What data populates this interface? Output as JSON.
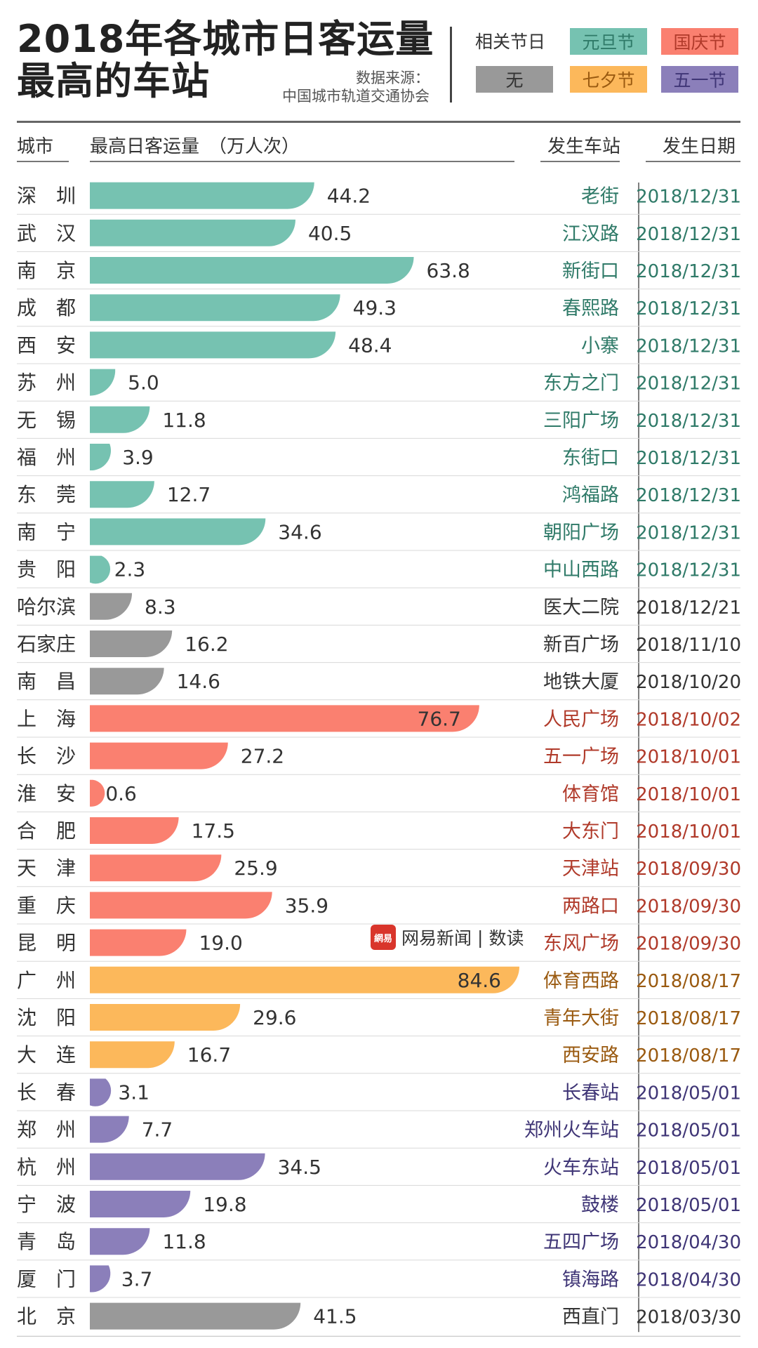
{
  "header": {
    "title_line1": "2018年各城市日客运量",
    "title_line2": "最高的车站",
    "source_line1": "数据来源：",
    "source_line2": "中国城市轨道交通协会"
  },
  "legend": {
    "label": "相关节日",
    "items": [
      {
        "name": "元旦节",
        "color": "#76c2b1",
        "text_color": "#2f7a68"
      },
      {
        "name": "国庆节",
        "color": "#fa8070",
        "text_color": "#b03a2a"
      },
      {
        "name": "无",
        "color": "#999999",
        "text_color": "#333333"
      },
      {
        "name": "七夕节",
        "color": "#fcb85b",
        "text_color": "#9a5a10"
      },
      {
        "name": "五一节",
        "color": "#8b7fba",
        "text_color": "#3f3576"
      }
    ]
  },
  "columns": {
    "city": "城市",
    "value": "最高日客运量　（万人次）",
    "station": "发生车站",
    "date": "发生日期"
  },
  "watermark": {
    "logo": "網易",
    "text": "网易新闻",
    "sep": "|",
    "sub": "数读"
  },
  "chart_data": {
    "type": "bar",
    "orientation": "horizontal",
    "title": "2018年各城市日客运量最高的车站",
    "unit": "万人次",
    "xlim": [
      0,
      84.6
    ],
    "grid": false,
    "colors": {
      "元旦节": "#76c2b1",
      "国庆节": "#fa8070",
      "无": "#999999",
      "七夕节": "#fcb85b",
      "五一节": "#8b7fba"
    },
    "text_colors": {
      "元旦节": "#2f7a68",
      "国庆节": "#b03a2a",
      "无": "#333333",
      "七夕节": "#9a5a10",
      "五一节": "#3f3576"
    },
    "rows": [
      {
        "city": "深　圳",
        "value": 44.2,
        "label": "44.2",
        "station": "老街",
        "date": "2018/12/31",
        "holiday": "元旦节"
      },
      {
        "city": "武　汉",
        "value": 40.5,
        "label": "40.5",
        "station": "江汉路",
        "date": "2018/12/31",
        "holiday": "元旦节"
      },
      {
        "city": "南　京",
        "value": 63.8,
        "label": "63.8",
        "station": "新街口",
        "date": "2018/12/31",
        "holiday": "元旦节"
      },
      {
        "city": "成　都",
        "value": 49.3,
        "label": "49.3",
        "station": "春熙路",
        "date": "2018/12/31",
        "holiday": "元旦节"
      },
      {
        "city": "西　安",
        "value": 48.4,
        "label": "48.4",
        "station": "小寨",
        "date": "2018/12/31",
        "holiday": "元旦节"
      },
      {
        "city": "苏　州",
        "value": 5.0,
        "label": "5.0",
        "station": "东方之门",
        "date": "2018/12/31",
        "holiday": "元旦节"
      },
      {
        "city": "无　锡",
        "value": 11.8,
        "label": "11.8",
        "station": "三阳广场",
        "date": "2018/12/31",
        "holiday": "元旦节"
      },
      {
        "city": "福　州",
        "value": 3.9,
        "label": "3.9",
        "station": "东街口",
        "date": "2018/12/31",
        "holiday": "元旦节"
      },
      {
        "city": "东　莞",
        "value": 12.7,
        "label": "12.7",
        "station": "鸿福路",
        "date": "2018/12/31",
        "holiday": "元旦节"
      },
      {
        "city": "南　宁",
        "value": 34.6,
        "label": "34.6",
        "station": "朝阳广场",
        "date": "2018/12/31",
        "holiday": "元旦节"
      },
      {
        "city": "贵　阳",
        "value": 2.3,
        "label": "2.3",
        "station": "中山西路",
        "date": "2018/12/31",
        "holiday": "元旦节"
      },
      {
        "city": "哈尔滨",
        "value": 8.3,
        "label": "8.3",
        "station": "医大二院",
        "date": "2018/12/21",
        "holiday": "无"
      },
      {
        "city": "石家庄",
        "value": 16.2,
        "label": "16.2",
        "station": "新百广场",
        "date": "2018/11/10",
        "holiday": "无"
      },
      {
        "city": "南　昌",
        "value": 14.6,
        "label": "14.6",
        "station": "地铁大厦",
        "date": "2018/10/20",
        "holiday": "无"
      },
      {
        "city": "上　海",
        "value": 76.7,
        "label": "76.7",
        "station": "人民广场",
        "date": "2018/10/02",
        "holiday": "国庆节"
      },
      {
        "city": "长　沙",
        "value": 27.2,
        "label": "27.2",
        "station": "五一广场",
        "date": "2018/10/01",
        "holiday": "国庆节"
      },
      {
        "city": "淮　安",
        "value": 0.6,
        "label": "0.6",
        "station": "体育馆",
        "date": "2018/10/01",
        "holiday": "国庆节"
      },
      {
        "city": "合　肥",
        "value": 17.5,
        "label": "17.5",
        "station": "大东门",
        "date": "2018/10/01",
        "holiday": "国庆节"
      },
      {
        "city": "天　津",
        "value": 25.9,
        "label": "25.9",
        "station": "天津站",
        "date": "2018/09/30",
        "holiday": "国庆节"
      },
      {
        "city": "重　庆",
        "value": 35.9,
        "label": "35.9",
        "station": "两路口",
        "date": "2018/09/30",
        "holiday": "国庆节"
      },
      {
        "city": "昆　明",
        "value": 19.0,
        "label": "19.0",
        "station": "东风广场",
        "date": "2018/09/30",
        "holiday": "国庆节"
      },
      {
        "city": "广　州",
        "value": 84.6,
        "label": "84.6",
        "station": "体育西路",
        "date": "2018/08/17",
        "holiday": "七夕节"
      },
      {
        "city": "沈　阳",
        "value": 29.6,
        "label": "29.6",
        "station": "青年大街",
        "date": "2018/08/17",
        "holiday": "七夕节"
      },
      {
        "city": "大　连",
        "value": 16.7,
        "label": "16.7",
        "station": "西安路",
        "date": "2018/08/17",
        "holiday": "七夕节"
      },
      {
        "city": "长　春",
        "value": 3.1,
        "label": "3.1",
        "station": "长春站",
        "date": "2018/05/01",
        "holiday": "五一节"
      },
      {
        "city": "郑　州",
        "value": 7.7,
        "label": "7.7",
        "station": "郑州火车站",
        "date": "2018/05/01",
        "holiday": "五一节"
      },
      {
        "city": "杭　州",
        "value": 34.5,
        "label": "34.5",
        "station": "火车东站",
        "date": "2018/05/01",
        "holiday": "五一节"
      },
      {
        "city": "宁　波",
        "value": 19.8,
        "label": "19.8",
        "station": "鼓楼",
        "date": "2018/05/01",
        "holiday": "五一节"
      },
      {
        "city": "青　岛",
        "value": 11.8,
        "label": "11.8",
        "station": "五四广场",
        "date": "2018/04/30",
        "holiday": "五一节"
      },
      {
        "city": "厦　门",
        "value": 3.7,
        "label": "3.7",
        "station": "镇海路",
        "date": "2018/04/30",
        "holiday": "五一节"
      },
      {
        "city": "北　京",
        "value": 41.5,
        "label": "41.5",
        "station": "西直门",
        "date": "2018/03/30",
        "holiday": "无"
      }
    ]
  }
}
